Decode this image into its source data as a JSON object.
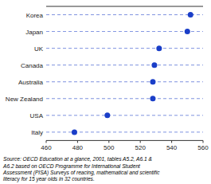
{
  "chart_data": {
    "type": "dot",
    "categories": [
      "Korea",
      "Japan",
      "UK",
      "Canada",
      "Australia",
      "New Zealand",
      "USA",
      "Italy"
    ],
    "values": [
      552,
      550,
      532,
      529,
      528,
      528,
      499,
      478
    ],
    "color": "#1a3ec8",
    "line_style": "dashed",
    "xlim": [
      460,
      560
    ],
    "xticks": [
      460,
      480,
      500,
      520,
      540,
      560
    ],
    "annotation": "Source: OECD Education at a glance, 2001, tables A5.2, A6.1 &\nA6.2 based on OECD Programme for International Student\nAssessment (PISA) Surveys of reacing, mathematical and scientific\nliteracy for 15 year olds in 32 countries."
  }
}
